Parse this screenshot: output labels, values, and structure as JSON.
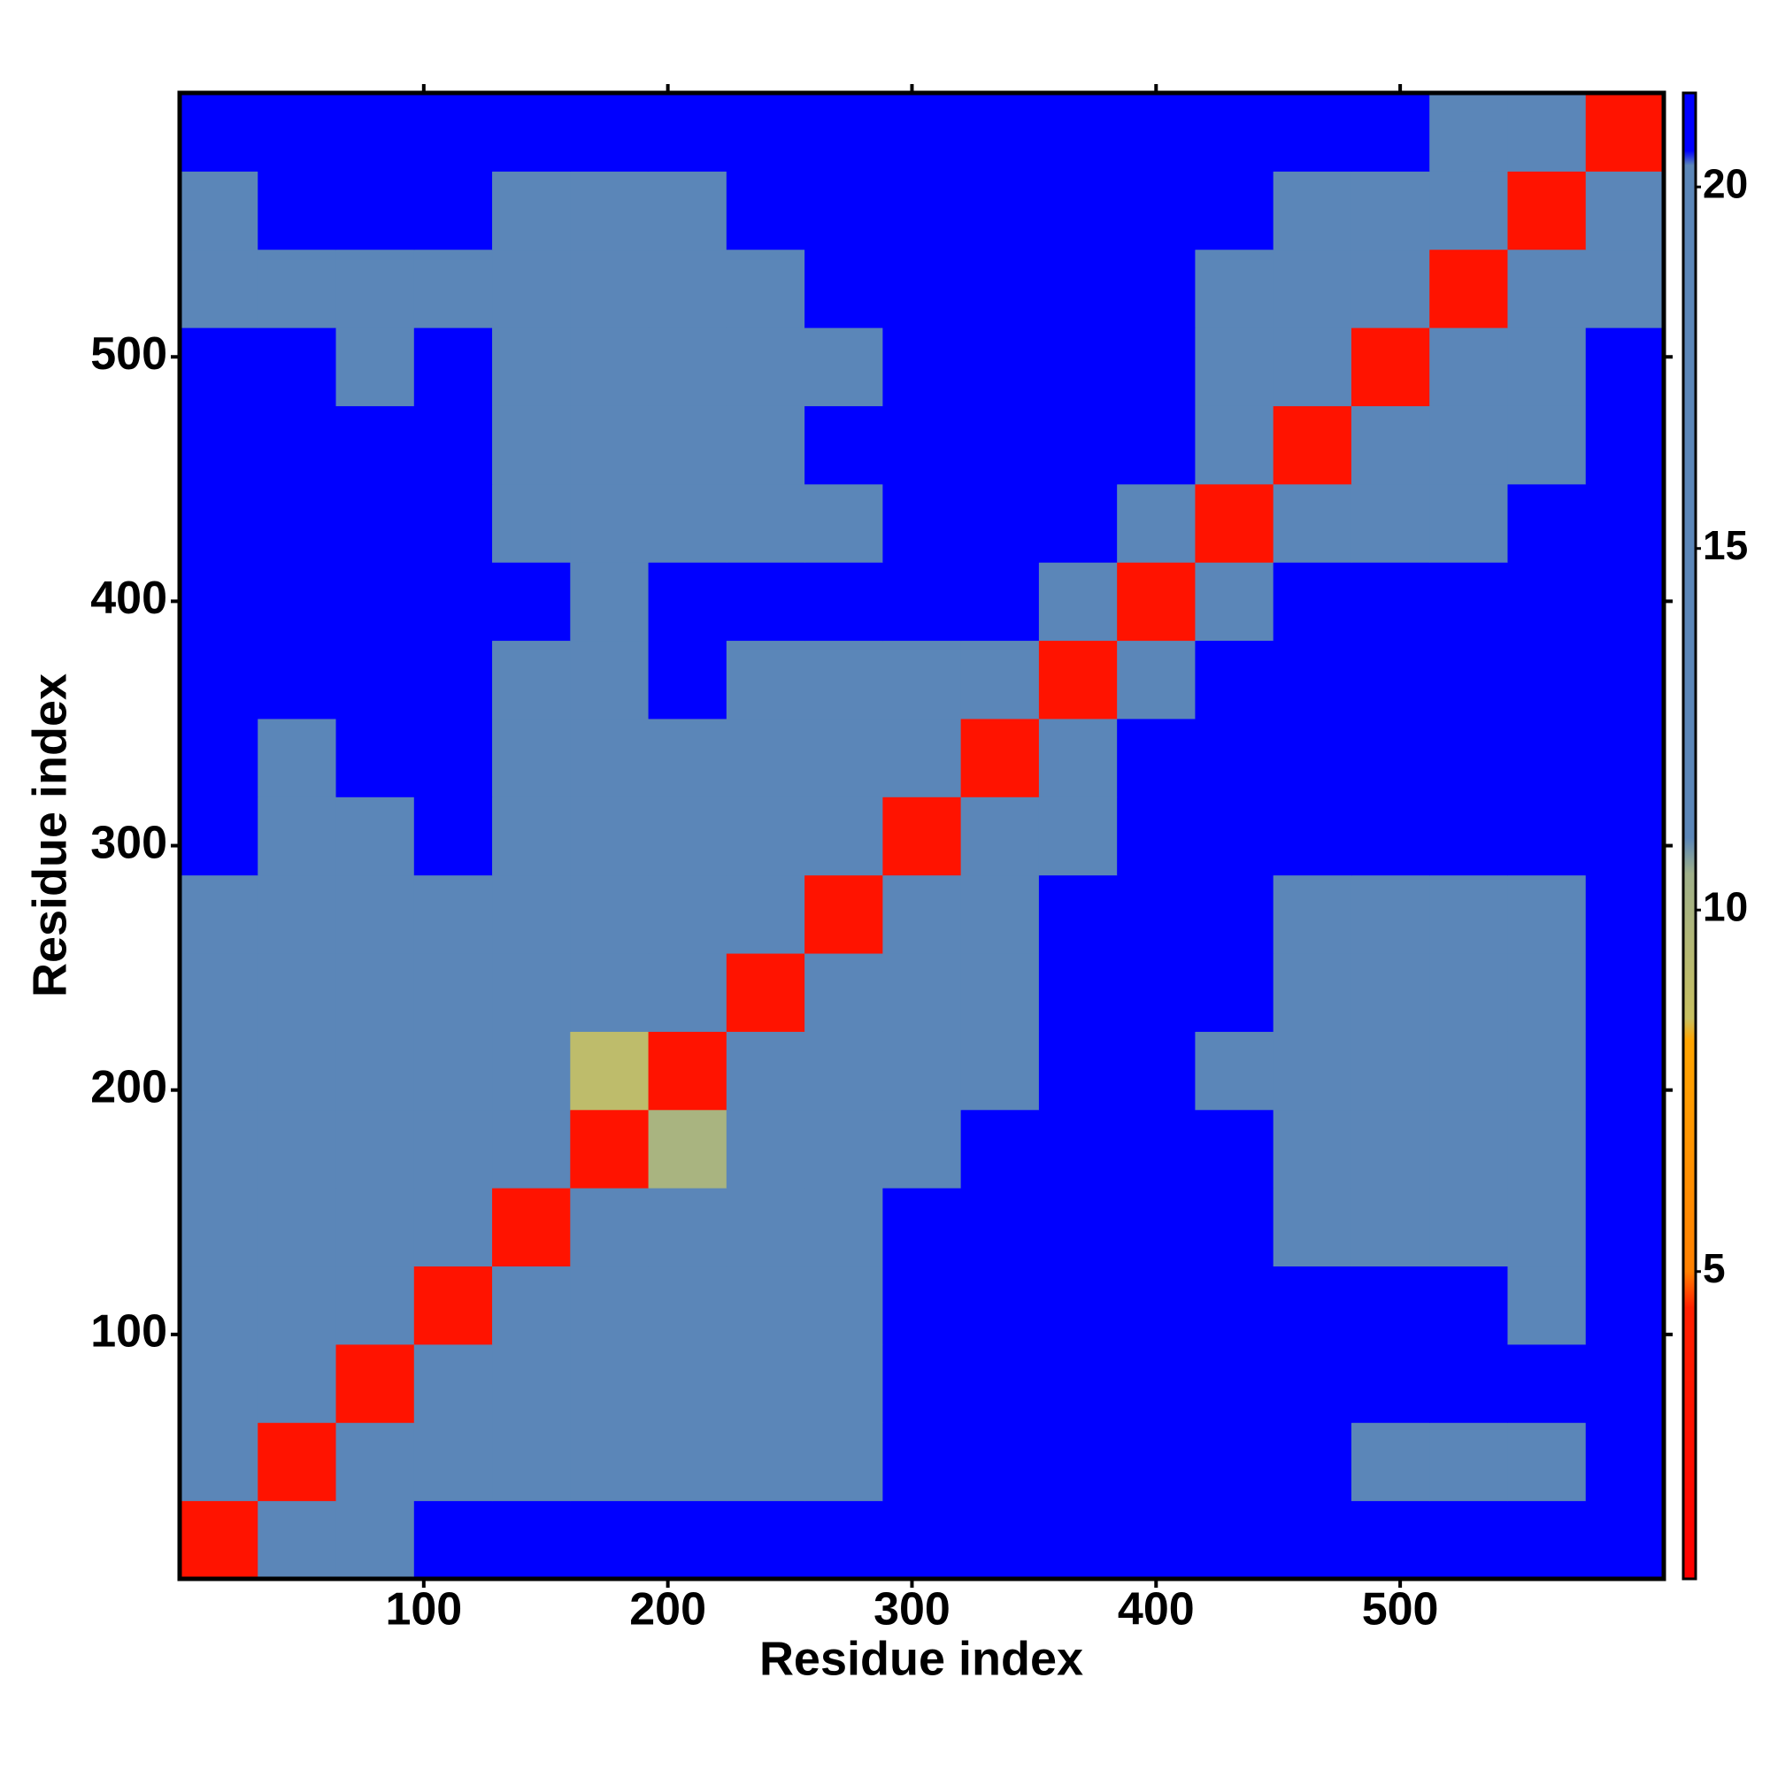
{
  "chart_data": {
    "type": "heatmap",
    "xlabel": "Residue index",
    "ylabel": "Residue index",
    "xlim": [
      0,
      608
    ],
    "ylim": [
      0,
      608
    ],
    "xticks": [
      100,
      200,
      300,
      400,
      500
    ],
    "yticks": [
      100,
      200,
      300,
      400,
      500
    ],
    "x_bins": [
      0,
      32,
      64,
      96,
      128,
      160,
      192,
      224,
      256,
      288,
      320,
      352,
      384,
      416,
      448,
      480,
      512,
      544,
      576,
      608
    ],
    "y_bins": [
      0,
      32,
      64,
      96,
      128,
      160,
      192,
      224,
      256,
      288,
      320,
      352,
      384,
      416,
      448,
      480,
      512,
      544,
      576,
      608
    ],
    "z": [
      [
        3,
        14,
        19,
        21,
        21,
        21,
        21,
        21,
        21,
        21,
        21,
        21,
        21,
        21,
        21,
        21,
        21,
        21,
        21
      ],
      [
        14,
        3,
        12,
        16,
        17,
        16,
        16,
        17,
        19,
        21,
        21,
        21,
        21,
        21,
        21,
        18,
        15,
        17,
        21
      ],
      [
        15,
        12,
        3,
        12,
        15,
        16,
        17,
        18,
        19,
        21,
        21,
        21,
        21,
        21,
        21,
        21,
        21,
        21,
        21
      ],
      [
        16,
        15,
        12,
        3,
        12,
        15,
        16,
        16,
        19,
        21,
        21,
        21,
        21,
        21,
        21,
        21,
        21,
        19,
        21
      ],
      [
        14,
        16,
        14,
        12,
        3,
        12,
        15,
        16,
        18,
        21,
        21,
        21,
        21,
        21,
        16,
        17,
        16,
        15,
        21
      ],
      [
        15,
        16,
        16,
        15,
        12,
        3,
        10,
        16,
        17,
        20,
        21,
        21,
        21,
        21,
        16,
        16,
        15,
        12,
        21
      ],
      [
        16,
        17,
        16,
        16,
        14,
        9,
        3,
        12,
        16,
        19,
        20,
        21,
        21,
        19,
        15,
        12,
        16,
        16,
        21
      ],
      [
        17,
        19,
        17,
        16,
        16,
        16,
        12,
        3,
        12,
        18,
        20,
        21,
        21,
        21,
        16,
        15,
        16,
        17,
        21
      ],
      [
        20,
        20,
        20,
        19,
        18,
        17,
        16,
        12,
        3,
        13,
        20,
        21,
        21,
        21,
        12,
        16,
        17,
        20,
        21
      ],
      [
        21,
        20,
        20,
        21,
        20,
        19,
        20,
        18,
        14,
        3,
        12,
        17,
        21,
        21,
        21,
        21,
        21,
        21,
        21
      ],
      [
        21,
        20,
        21,
        21,
        20,
        19,
        20,
        19,
        17,
        11,
        3,
        11,
        21,
        21,
        21,
        21,
        21,
        21,
        21
      ],
      [
        21,
        21,
        21,
        21,
        20,
        20,
        21,
        20,
        19,
        15,
        11,
        3,
        15,
        21,
        21,
        21,
        21,
        21,
        21
      ],
      [
        21,
        21,
        21,
        21,
        21,
        20,
        21,
        21,
        21,
        21,
        21,
        14,
        3,
        14,
        21,
        21,
        21,
        21,
        21
      ],
      [
        21,
        21,
        21,
        21,
        17,
        16,
        17,
        16,
        19,
        21,
        21,
        21,
        14,
        3,
        12,
        17,
        19,
        21,
        21
      ],
      [
        21,
        21,
        21,
        21,
        16,
        16,
        15,
        16,
        21,
        21,
        21,
        21,
        21,
        12,
        3,
        12,
        15,
        18,
        21
      ],
      [
        21,
        21,
        20,
        21,
        16,
        12,
        15,
        15,
        20,
        21,
        21,
        21,
        21,
        16,
        12,
        3,
        12,
        16,
        21
      ],
      [
        16,
        16,
        20,
        19,
        15,
        15,
        16,
        18,
        21,
        21,
        21,
        21,
        21,
        17,
        15,
        12,
        3,
        12,
        19
      ],
      [
        18,
        21,
        21,
        21,
        16,
        17,
        19,
        21,
        21,
        21,
        21,
        21,
        21,
        21,
        18,
        17,
        12,
        3,
        12
      ],
      [
        21,
        21,
        21,
        21,
        21,
        21,
        21,
        21,
        21,
        21,
        21,
        21,
        21,
        21,
        21,
        21,
        19,
        12,
        3
      ]
    ],
    "colorbar_lim": [
      0.75,
      21.3
    ],
    "colorbar_ticks": [
      5,
      10,
      15,
      20
    ],
    "colorscale": [
      [
        0.75,
        "#ff0000"
      ],
      [
        4.5,
        "#ff2000"
      ],
      [
        5,
        "#ff8000"
      ],
      [
        8.2,
        "#ffa500"
      ],
      [
        8.5,
        "#c8c060"
      ],
      [
        10.5,
        "#9fb08a"
      ],
      [
        11,
        "#5b86b8"
      ],
      [
        20.3,
        "#5b86b8"
      ],
      [
        20.5,
        "#0000ff"
      ],
      [
        21.3,
        "#0000ff"
      ]
    ]
  }
}
